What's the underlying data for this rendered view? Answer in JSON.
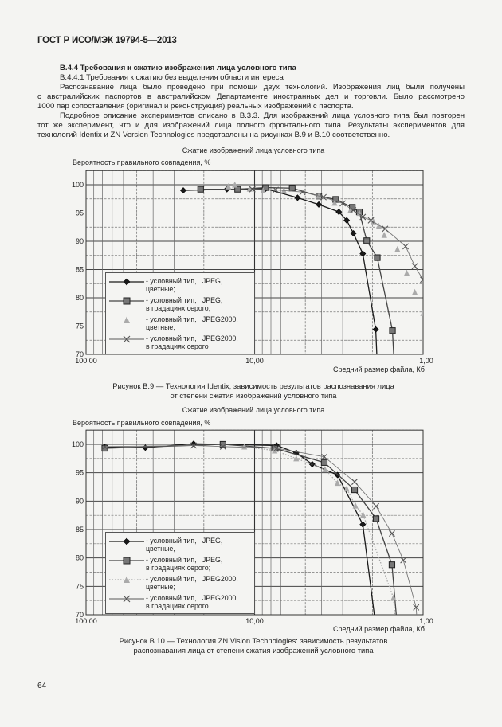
{
  "header": {
    "doc_id": "ГОСТ Р ИСО/МЭК 19794-5—2013"
  },
  "section": {
    "heading": "В.4.4 Требования к сжатию изображения лица условного типа",
    "subheading": "В.4.4.1 Требования к сжатию без выделения области интереса",
    "lines": [
      "Распознавание лица было проведено при помощи двух технологий. Изображения лиц были получены",
      "с австралийских паспортов в австралийском Департаменте иностранных дел и торговли. Было рассмотрено",
      "1000 пар сопоставления (оригинал и реконструкция) реальных изображений с паспорта.",
      "Подробное описание экспериментов описано в В.3.3. Для изображений лица условного типа был повторен",
      "тот же эксперимент, что и для изображений лица полного фронтального типа. Результаты экспериментов для",
      "технологий Identix и ZN Version Technologies представлены на рисунках В.9 и В.10 соответственно."
    ]
  },
  "figures": [
    {
      "caption_lines": [
        "Рисунок В.9 — Технология Identix; зависимость результатов распознавания лица",
        "от степени сжатия изображений условного типа"
      ]
    },
    {
      "caption_lines": [
        "Рисунок В.10 — Технология ZN Vision Technologies: зависимость результатов",
        "распознавания лица от степени сжатия изображений условного типа"
      ]
    }
  ],
  "page_number": "64",
  "chart_data": [
    {
      "type": "line",
      "title": "Сжатие изображений лица  условного типа",
      "ylabel": "Вероятность правильного совпадения, %",
      "xlabel": "Средний размер файла, Кб",
      "x_scale": "log",
      "x_reversed": true,
      "xlim": [
        100,
        1
      ],
      "ylim": [
        70,
        102.5
      ],
      "x_tick_labels": [
        "100,00",
        "10,00",
        "1,00"
      ],
      "y_tick_labels": [
        "70",
        "75",
        "80",
        "85",
        "90",
        "95",
        "100"
      ],
      "grid": true,
      "legend": "bottom-left",
      "series": [
        {
          "name": "- условный тип,   JPEG,\nцветные;",
          "marker": "diamond",
          "color": "#1a1a1a",
          "line": true,
          "x": [
            26.5,
            14.6,
            8.6,
            5.56,
            4.16,
            3.16,
            2.84,
            2.59,
            2.28,
            1.91
          ],
          "y": [
            99.0,
            99.2,
            99.3,
            97.7,
            96.5,
            95.2,
            93.7,
            91.4,
            87.8,
            74.4
          ]
        },
        {
          "name": "- условный тип,   JPEG,\nв градациях серого;",
          "marker": "square",
          "color": "#444444",
          "line": true,
          "x": [
            20.9,
            12.6,
            8.6,
            5.98,
            4.16,
            3.3,
            2.63,
            2.39,
            2.16,
            1.87,
            1.52
          ],
          "y": [
            99.2,
            99.2,
            99.5,
            99.4,
            98.0,
            97.4,
            96.0,
            95.2,
            90.1,
            87.1,
            74.2
          ]
        },
        {
          "name": "- условный тип,   JPEG2000,\nцветные;",
          "marker": "triangle",
          "color": "#aaaaaa",
          "line": false,
          "x": [
            14.3,
            13.1,
            10.7,
            8.9,
            6.7,
            4.16,
            3.35,
            2.7,
            2.39,
            1.97,
            1.83,
            1.7,
            1.42,
            1.25,
            1.12,
            1.0
          ],
          "y": [
            99.7,
            100.0,
            99.3,
            99.0,
            99.0,
            98.0,
            96.8,
            95.5,
            95.0,
            93.5,
            92.7,
            91.1,
            88.6,
            84.4,
            81.0,
            77.3
          ]
        },
        {
          "name": "- условный тип,   JPEG2000,\nв градациях серого",
          "marker": "cross",
          "color": "#777777",
          "line": true,
          "x": [
            10.3,
            7.5,
            5.2,
            3.9,
            3.0,
            2.6,
            2.28,
            2.04,
            1.68,
            1.27,
            1.12,
            1.0
          ],
          "y": [
            99.2,
            99.1,
            98.7,
            97.8,
            96.7,
            95.5,
            94.3,
            93.7,
            92.2,
            89.1,
            85.6,
            83.2
          ]
        }
      ]
    },
    {
      "type": "line",
      "title": "Сжатие изображений лица  условного типа",
      "ylabel": "Вероятность правильного совпадения, %",
      "xlabel": "Средний размер файла, Кб",
      "x_scale": "log",
      "x_reversed": true,
      "xlim": [
        100,
        1
      ],
      "ylim": [
        70,
        102.5
      ],
      "x_tick_labels": [
        "100,00",
        "10,00",
        "1,00"
      ],
      "y_tick_labels": [
        "70",
        "75",
        "80",
        "85",
        "90",
        "95",
        "100"
      ],
      "grid": true,
      "legend": "bottom-left",
      "series": [
        {
          "name": "- условный тип,   JPEG,\nцветные,",
          "marker": "diamond",
          "color": "#1a1a1a",
          "line": true,
          "x": [
            77.4,
            44.5,
            23.0,
            15.4,
            7.4,
            5.66,
            4.55,
            3.22,
            2.28
          ],
          "y": [
            99.5,
            99.4,
            100.1,
            100.0,
            99.8,
            98.5,
            96.5,
            94.6,
            85.9
          ]
        },
        {
          "name": "- условный тип,   JPEG,\nв градациях серого;",
          "marker": "square",
          "color": "#444444",
          "line": true,
          "x": [
            77.4,
            15.4,
            7.6,
            3.86,
            2.55,
            1.9,
            1.53
          ],
          "y": [
            99.3,
            100.0,
            99.3,
            96.8,
            92.0,
            86.9,
            78.8
          ]
        },
        {
          "name": "- условный тип,   JPEG2000,\nцветные;",
          "marker": "triangle",
          "color": "#aaaaaa",
          "line": "dotted",
          "x": [
            11.5,
            7.6,
            5.66,
            3.82,
            3.22,
            2.84,
            2.52,
            2.27,
            1.5
          ],
          "y": [
            99.6,
            98.9,
            97.5,
            95.6,
            93.2,
            92.2,
            89.2,
            87.6,
            73.0
          ]
        },
        {
          "name": "- условный тип,   JPEG2000,\nв градациях серого",
          "marker": "cross",
          "color": "#777777",
          "line": true,
          "x": [
            77.4,
            23.0,
            15.4,
            7.4,
            3.86,
            2.55,
            1.9,
            1.53,
            1.31,
            1.1
          ],
          "y": [
            99.6,
            99.8,
            99.6,
            99.3,
            97.8,
            93.4,
            89.1,
            84.3,
            79.6,
            71.3
          ]
        }
      ]
    }
  ]
}
